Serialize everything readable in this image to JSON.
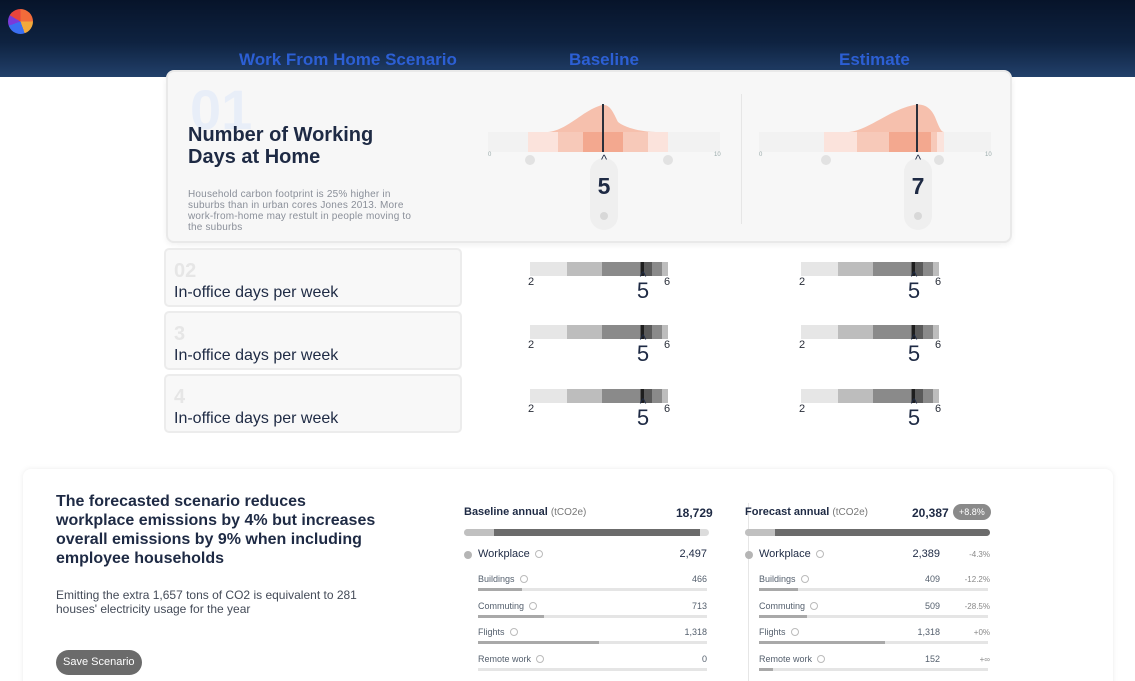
{
  "header": {
    "columns": [
      "Work From Home Scenario",
      "Baseline",
      "Estimate"
    ]
  },
  "main_card": {
    "number": "01",
    "title": "Number of Working Days at Home",
    "description": "Household carbon footprint is 25% higher in suburbs than in urban cores Jones 2013. More work-from-home may restult in people moving to the suburbs",
    "baseline": {
      "value": "5",
      "min": "0",
      "max": "10"
    },
    "estimate": {
      "value": "7",
      "min": "0",
      "max": "10"
    }
  },
  "rows": [
    {
      "number": "02",
      "label": "In-office days per week",
      "baseline": {
        "low": "2",
        "value": "5",
        "high": "6"
      },
      "estimate": {
        "low": "2",
        "value": "5",
        "high": "6"
      }
    },
    {
      "number": "3",
      "label": "In-office days per week",
      "baseline": {
        "low": "2",
        "value": "5",
        "high": "6"
      },
      "estimate": {
        "low": "2",
        "value": "5",
        "high": "6"
      }
    },
    {
      "number": "4",
      "label": "In-office days per week",
      "baseline": {
        "low": "2",
        "value": "5",
        "high": "6"
      },
      "estimate": {
        "low": "2",
        "value": "5",
        "high": "6"
      }
    }
  ],
  "summary": {
    "headline": "The forecasted scenario reduces workplace emissions by 4% but increases overall emissions by 9% when including employee households",
    "detail": "Emitting the extra 1,657 tons of CO2 is equivalent to 281 houses' electricity usage for the year",
    "save_label": "Save Scenario"
  },
  "baseline_panel": {
    "title": "Baseline annual",
    "unit": "(tCO2e)",
    "total": "18,729",
    "total_share": 0.96,
    "workplace": {
      "label": "Workplace",
      "value": "2,497"
    },
    "items": [
      {
        "label": "Buildings",
        "value": "466",
        "share": 0.19
      },
      {
        "label": "Commuting",
        "value": "713",
        "share": 0.29
      },
      {
        "label": "Flights",
        "value": "1,318",
        "share": 0.53
      },
      {
        "label": "Remote work",
        "value": "0",
        "share": 0.0
      }
    ]
  },
  "forecast_panel": {
    "title": "Forecast annual",
    "unit": "(tCO2e)",
    "total": "20,387",
    "change": "+8.8%",
    "total_share": 1.0,
    "workplace": {
      "label": "Workplace",
      "value": "2,389",
      "change": "-4.3%"
    },
    "items": [
      {
        "label": "Buildings",
        "value": "409",
        "change": "-12.2%",
        "share": 0.17
      },
      {
        "label": "Commuting",
        "value": "509",
        "change": "-28.5%",
        "share": 0.21
      },
      {
        "label": "Flights",
        "value": "1,318",
        "change": "+0%",
        "share": 0.55
      },
      {
        "label": "Remote work",
        "value": "152",
        "change": "+∞",
        "share": 0.06
      }
    ]
  },
  "colors": {
    "accent": "#2c5fd4",
    "header_bg": "#0e2240",
    "dist": "#f26b3a"
  }
}
